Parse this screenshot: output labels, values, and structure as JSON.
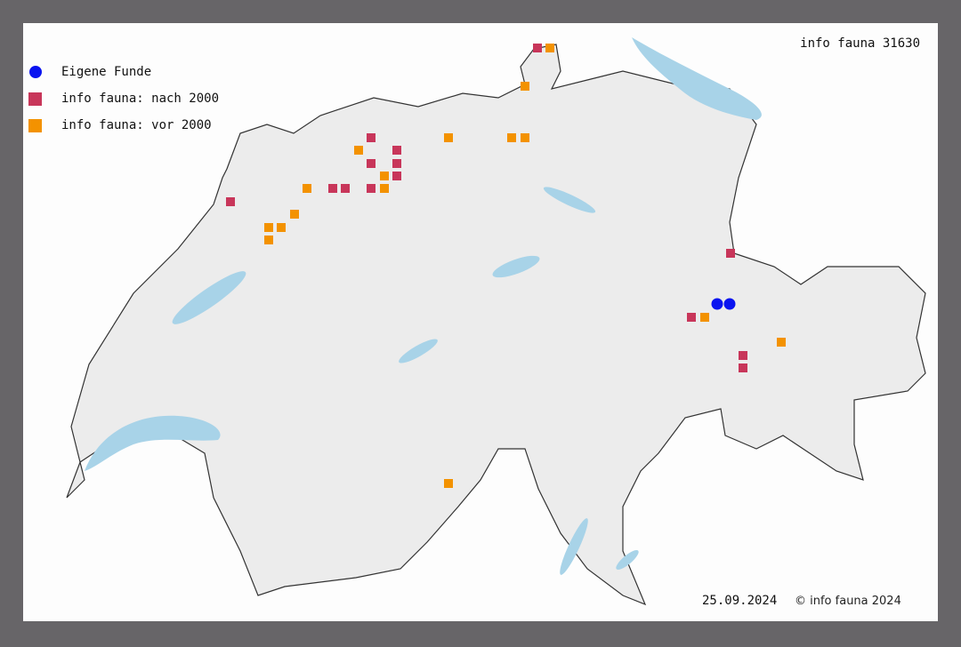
{
  "title": "info fauna 31630",
  "legend": [
    {
      "label": "Eigene Funde",
      "shape": "circle",
      "color": "#0a14f0"
    },
    {
      "label": "info fauna: nach 2000",
      "shape": "square",
      "color": "#c8365a"
    },
    {
      "label": "info fauna: vor 2000",
      "shape": "square",
      "color": "#f39200"
    }
  ],
  "date": "25.09.2024",
  "copyright": "© info fauna 2024",
  "colors": {
    "lake": "#a8d3e8",
    "border": "#333333",
    "land": "#f0f0f0",
    "frame": "#676568"
  }
}
